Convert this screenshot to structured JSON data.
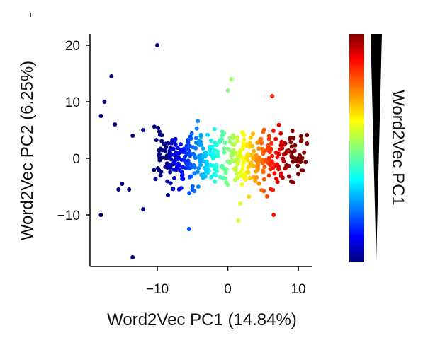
{
  "chart_data": {
    "type": "scatter",
    "xlabel": "Word2Vec PC1 (14.84%)",
    "ylabel": "Word2Vec PC2 (6.25%)",
    "xlim": [
      -19.5,
      12
    ],
    "ylim": [
      -19,
      22
    ],
    "xticks": [
      -10,
      0,
      10
    ],
    "yticks": [
      20,
      10,
      0,
      -10
    ],
    "xtick_labels": [
      "−10",
      "0",
      "10"
    ],
    "ytick_labels": [
      "20",
      "10",
      "0",
      "−10"
    ],
    "grid": false,
    "colormap": "jet",
    "color_by": "x",
    "colorbar_label": "Word2Vec PC1",
    "colors": {
      "low": "#00007f",
      "high": "#7f0000",
      "axis": "#000000"
    },
    "outliers": [
      [
        -10,
        20
      ],
      [
        -16.5,
        14.5
      ],
      [
        -17.5,
        10
      ],
      [
        -18,
        7.5
      ],
      [
        -16,
        6
      ],
      [
        -13.5,
        4
      ],
      [
        -12,
        5
      ],
      [
        -15,
        -4.5
      ],
      [
        -15.5,
        -5.5
      ],
      [
        -14,
        -5.5
      ],
      [
        -12,
        -9
      ],
      [
        -18,
        -10
      ],
      [
        -13.5,
        -17.5
      ],
      [
        -5.5,
        -12.5
      ],
      [
        0.5,
        14
      ],
      [
        0,
        12
      ],
      [
        6.3,
        11
      ],
      [
        1.5,
        -11
      ],
      [
        6.5,
        -10
      ]
    ],
    "cloud": {
      "count": 470,
      "x_range": [
        -10,
        11
      ],
      "y_range": [
        -8,
        7
      ]
    }
  }
}
